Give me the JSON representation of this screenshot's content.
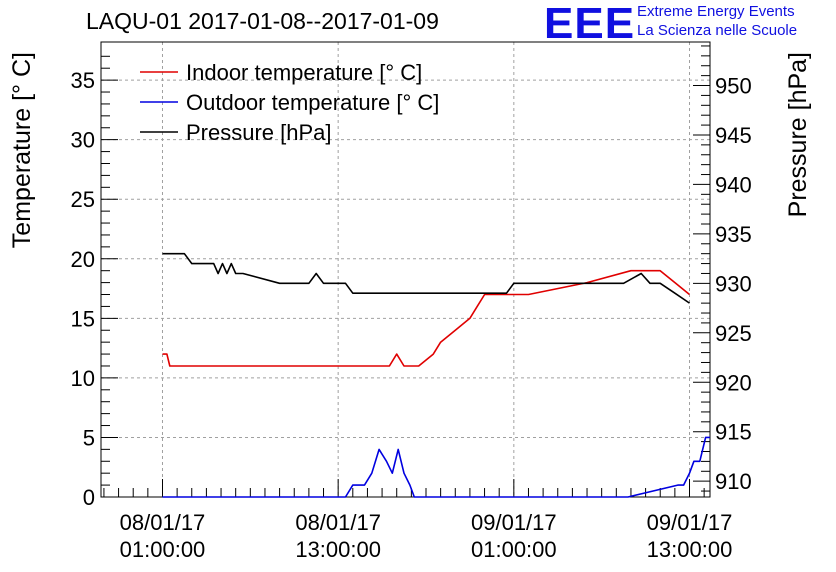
{
  "header": {
    "title": "LAQU-01 2017-01-08--2017-01-09",
    "logo": "EEE",
    "logo_line1": "Extreme Energy Events",
    "logo_line2": "La Scienza nelle Scuole"
  },
  "colors": {
    "indoor": "#e00000",
    "outdoor": "#0000e0",
    "pressure": "#000000",
    "grid": "#a0a0a0",
    "logo": "#1010e0"
  },
  "chart_data": {
    "type": "line",
    "title": "LAQU-01 2017-01-08--2017-01-09",
    "xlabel": "",
    "ylabel": "Temperature [° C]",
    "y2label": "Pressure [hPa]",
    "xlim": [
      -4.2,
      37.4
    ],
    "ylim": [
      0,
      38.2
    ],
    "y2lim": [
      908.4,
      954.4
    ],
    "x_ticks": [
      {
        "x": 0,
        "line1": "08/01/17",
        "line2": "01:00:00"
      },
      {
        "x": 12,
        "line1": "08/01/17",
        "line2": "13:00:00"
      },
      {
        "x": 24,
        "line1": "09/01/17",
        "line2": "01:00:00"
      },
      {
        "x": 36,
        "line1": "09/01/17",
        "line2": "13:00:00"
      }
    ],
    "y_ticks": [
      0,
      5,
      10,
      15,
      20,
      25,
      30,
      35
    ],
    "y2_ticks": [
      910,
      915,
      920,
      925,
      930,
      935,
      940,
      945,
      950
    ],
    "legend_position": "top-left",
    "series": [
      {
        "name": "Indoor temperature [° C]",
        "axis": "left",
        "x": [
          0,
          0.3,
          0.5,
          15.5,
          16,
          16.5,
          17.5,
          18.5,
          19,
          20,
          21,
          21.5,
          22,
          23,
          25,
          29,
          32,
          34,
          35,
          36
        ],
        "y": [
          12,
          12,
          11,
          11,
          12,
          11,
          11,
          12,
          13,
          14,
          15,
          16,
          17,
          17,
          17,
          18,
          19,
          19,
          18,
          17
        ]
      },
      {
        "name": "Outdoor temperature [° C]",
        "axis": "left",
        "x": [
          0,
          12.5,
          13,
          13.8,
          14.3,
          14.8,
          15.3,
          15.7,
          16.1,
          16.5,
          16.9,
          17.2,
          31.8,
          35.2,
          35.6,
          36.0,
          36.3,
          36.7,
          37.1,
          37.4
        ],
        "y": [
          0,
          0,
          1,
          1,
          2,
          4,
          3,
          2,
          4,
          2,
          1,
          0,
          0,
          1,
          1,
          2,
          3,
          3,
          5,
          5
        ]
      },
      {
        "name": "Pressure [hPa]",
        "axis": "right",
        "x": [
          0,
          1.5,
          2,
          3.5,
          3.8,
          4.1,
          4.4,
          4.7,
          5,
          5.5,
          8,
          10,
          10.5,
          11,
          12.5,
          13,
          14,
          23.5,
          24,
          31.5,
          32.7,
          33.3,
          34,
          35,
          36
        ],
        "y": [
          933,
          933,
          932,
          932,
          931,
          932,
          931,
          932,
          931,
          931,
          930,
          930,
          931,
          930,
          930,
          929,
          929,
          929,
          930,
          930,
          931,
          930,
          930,
          929,
          928
        ]
      }
    ]
  }
}
